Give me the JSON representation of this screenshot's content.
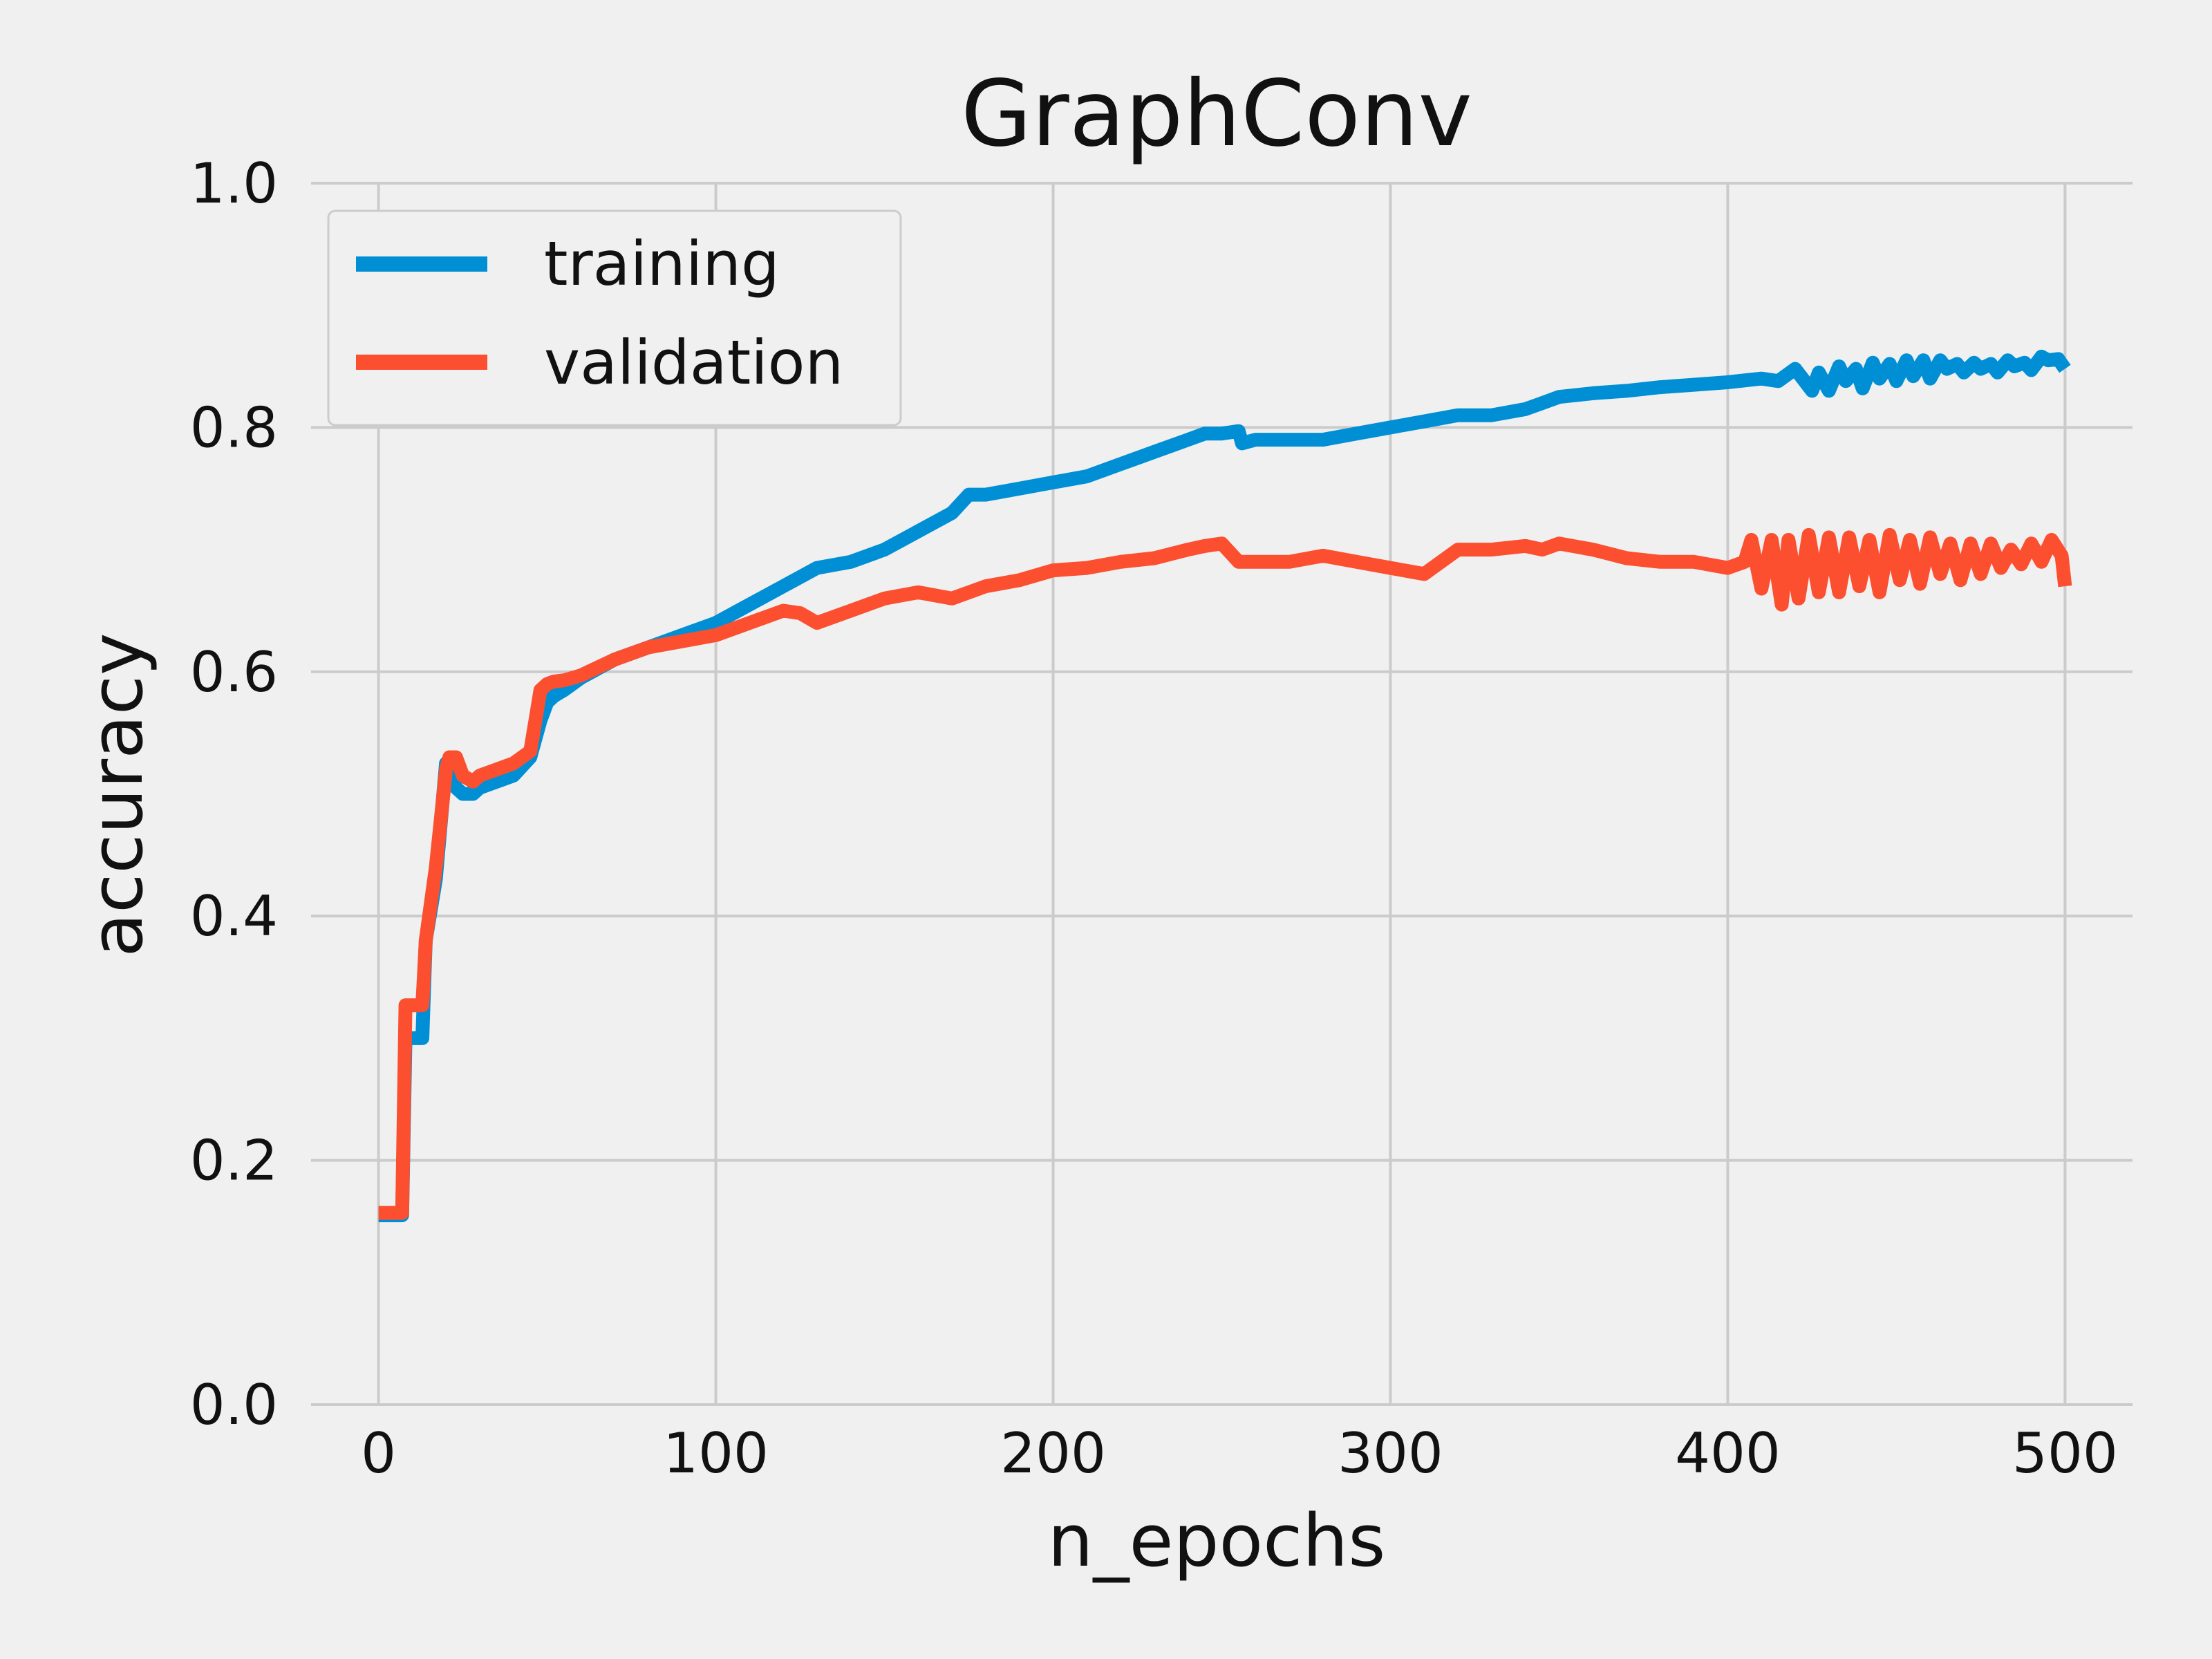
{
  "chart_data": {
    "type": "line",
    "title": "GraphConv",
    "xlabel": "n_epochs",
    "ylabel": "accuracy",
    "xlim": [
      -20,
      520
    ],
    "ylim": [
      0.0,
      1.0
    ],
    "xticks": [
      0,
      100,
      200,
      300,
      400,
      500
    ],
    "yticks": [
      0.0,
      0.2,
      0.4,
      0.6,
      0.8,
      1.0
    ],
    "xtick_labels": [
      "0",
      "100",
      "200",
      "300",
      "400",
      "500"
    ],
    "ytick_labels": [
      "0.0",
      "0.2",
      "0.4",
      "0.6",
      "0.8",
      "1.0"
    ],
    "grid": true,
    "legend_position": "upper-left",
    "series": [
      {
        "name": "training",
        "color": "#008fd5",
        "x": [
          0,
          7,
          8,
          13,
          14,
          17,
          20,
          21,
          23,
          25,
          28,
          30,
          35,
          40,
          45,
          48,
          50,
          52,
          55,
          60,
          70,
          80,
          90,
          100,
          110,
          120,
          130,
          140,
          150,
          160,
          170,
          175,
          180,
          190,
          200,
          210,
          220,
          230,
          240,
          245,
          250,
          255,
          256,
          260,
          270,
          280,
          290,
          300,
          310,
          320,
          330,
          340,
          345,
          350,
          360,
          370,
          380,
          390,
          400,
          410,
          415,
          420,
          425,
          427,
          430,
          433,
          435,
          438,
          440,
          443,
          445,
          448,
          450,
          453,
          455,
          458,
          460,
          463,
          465,
          468,
          470,
          473,
          475,
          478,
          480,
          483,
          485,
          488,
          490,
          493,
          495,
          498,
          500
        ],
        "y": [
          0.155,
          0.155,
          0.3,
          0.3,
          0.38,
          0.43,
          0.525,
          0.525,
          0.505,
          0.5,
          0.5,
          0.505,
          0.51,
          0.515,
          0.53,
          0.56,
          0.575,
          0.58,
          0.585,
          0.595,
          0.61,
          0.62,
          0.63,
          0.64,
          0.655,
          0.67,
          0.685,
          0.69,
          0.7,
          0.715,
          0.73,
          0.745,
          0.745,
          0.75,
          0.755,
          0.76,
          0.77,
          0.78,
          0.79,
          0.795,
          0.795,
          0.797,
          0.787,
          0.79,
          0.79,
          0.79,
          0.795,
          0.8,
          0.805,
          0.81,
          0.81,
          0.815,
          0.82,
          0.825,
          0.828,
          0.83,
          0.833,
          0.835,
          0.837,
          0.84,
          0.838,
          0.848,
          0.83,
          0.845,
          0.83,
          0.85,
          0.838,
          0.848,
          0.832,
          0.853,
          0.84,
          0.852,
          0.838,
          0.855,
          0.842,
          0.855,
          0.84,
          0.855,
          0.848,
          0.852,
          0.845,
          0.853,
          0.848,
          0.852,
          0.845,
          0.855,
          0.85,
          0.853,
          0.847,
          0.858,
          0.855,
          0.856,
          0.848
        ]
      },
      {
        "name": "validation",
        "color": "#fc4f30",
        "x": [
          0,
          7,
          8,
          13,
          14,
          17,
          20,
          21,
          23,
          25,
          28,
          30,
          35,
          40,
          45,
          48,
          50,
          52,
          55,
          60,
          70,
          80,
          90,
          100,
          110,
          120,
          125,
          130,
          140,
          150,
          160,
          170,
          180,
          190,
          200,
          210,
          220,
          230,
          240,
          245,
          250,
          255,
          260,
          270,
          280,
          290,
          300,
          310,
          320,
          325,
          330,
          340,
          345,
          350,
          360,
          370,
          380,
          390,
          400,
          405,
          407,
          410,
          413,
          416,
          418,
          421,
          424,
          427,
          430,
          433,
          436,
          439,
          442,
          445,
          448,
          451,
          454,
          457,
          460,
          463,
          466,
          469,
          472,
          475,
          478,
          481,
          484,
          487,
          490,
          493,
          496,
          499,
          500
        ],
        "y": [
          0.157,
          0.157,
          0.327,
          0.327,
          0.38,
          0.44,
          0.52,
          0.53,
          0.53,
          0.515,
          0.51,
          0.515,
          0.52,
          0.525,
          0.535,
          0.585,
          0.59,
          0.592,
          0.593,
          0.597,
          0.61,
          0.62,
          0.625,
          0.63,
          0.64,
          0.65,
          0.648,
          0.64,
          0.65,
          0.66,
          0.665,
          0.66,
          0.67,
          0.675,
          0.683,
          0.685,
          0.69,
          0.693,
          0.7,
          0.703,
          0.705,
          0.69,
          0.69,
          0.69,
          0.695,
          0.69,
          0.685,
          0.68,
          0.7,
          0.7,
          0.7,
          0.703,
          0.7,
          0.705,
          0.7,
          0.693,
          0.69,
          0.69,
          0.685,
          0.69,
          0.708,
          0.668,
          0.708,
          0.655,
          0.708,
          0.66,
          0.712,
          0.665,
          0.71,
          0.665,
          0.71,
          0.67,
          0.708,
          0.665,
          0.712,
          0.675,
          0.708,
          0.672,
          0.71,
          0.68,
          0.705,
          0.675,
          0.705,
          0.68,
          0.705,
          0.685,
          0.7,
          0.688,
          0.705,
          0.69,
          0.708,
          0.695,
          0.67
        ]
      }
    ]
  }
}
